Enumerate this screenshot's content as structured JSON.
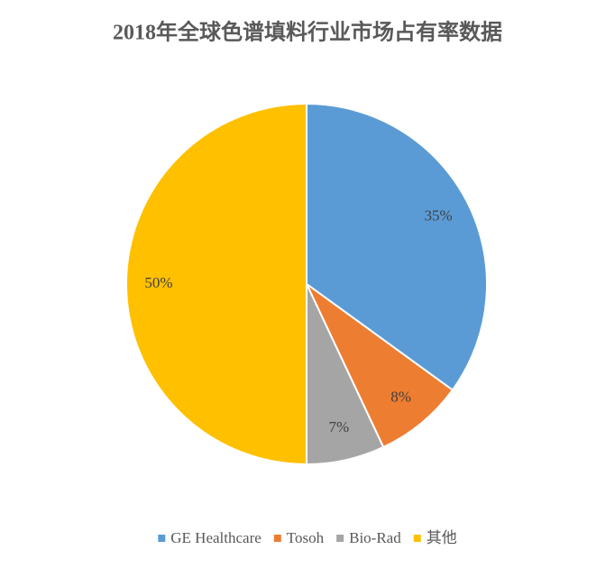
{
  "chart_data": {
    "type": "pie",
    "title": "2018年全球色谱填料行业市场占有率数据",
    "categories": [
      "GE Healthcare",
      "Tosoh",
      "Bio-Rad",
      "其他"
    ],
    "values": [
      35,
      8,
      7,
      50
    ],
    "value_labels": [
      "35%",
      "8%",
      "7%",
      "50%"
    ],
    "colors": [
      "#5b9bd5",
      "#ed7d31",
      "#a5a5a5",
      "#ffc000"
    ],
    "legend": "bottom"
  }
}
